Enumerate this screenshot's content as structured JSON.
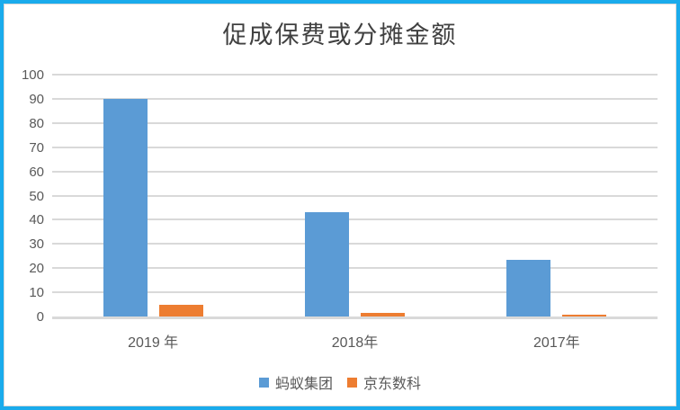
{
  "title": "促成保费或分摊金额",
  "colors": {
    "frame_border": "#1AABEC",
    "canvas_border": "#D9D9D9",
    "gridline": "#D9D9D9",
    "axis_text": "#595959",
    "title_text": "#404040",
    "series_ant_group": "#5B9BD5",
    "series_jd_digits": "#ED7D31"
  },
  "chart_data": {
    "type": "bar",
    "title": "促成保费或分摊金额",
    "categories": [
      "2019 年",
      "2018年",
      "2017年"
    ],
    "series": [
      {
        "name": "蚂蚁集团",
        "slug": "ant-group",
        "color": "#5B9BD5",
        "values": [
          89.8,
          43,
          23.3
        ]
      },
      {
        "name": "京东数科",
        "slug": "jd-digits",
        "color": "#ED7D31",
        "values": [
          4.9,
          1.5,
          0.7
        ]
      }
    ],
    "xlabel": "",
    "ylabel": "",
    "ylim": [
      0,
      100
    ],
    "yticks": [
      0,
      10,
      20,
      30,
      40,
      50,
      60,
      70,
      80,
      90,
      100
    ],
    "grid": true,
    "legend_position": "bottom"
  }
}
